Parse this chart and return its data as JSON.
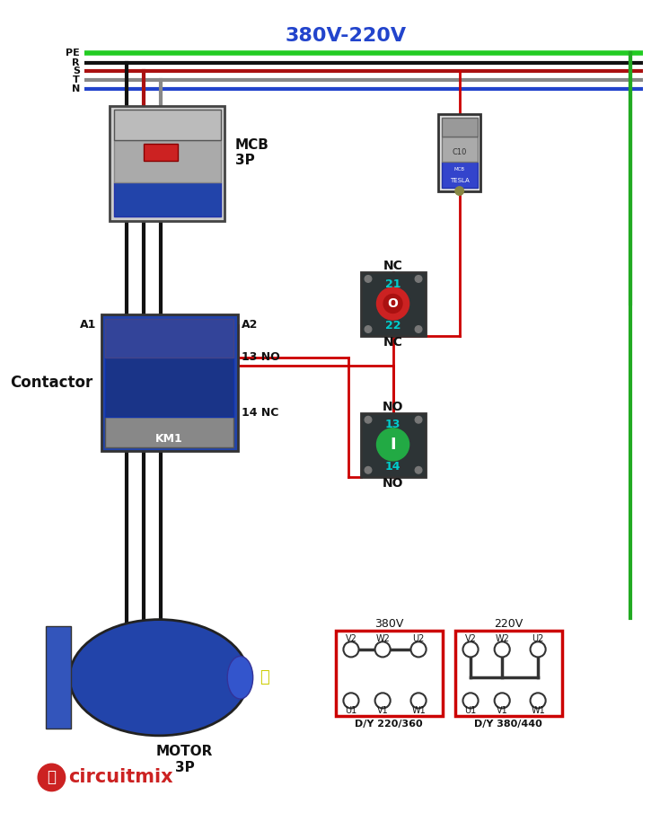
{
  "title": "380V-220V",
  "title_color": "#2244cc",
  "bg_color": "#ffffff",
  "bus_labels": [
    "PE",
    "R",
    "S",
    "T",
    "N"
  ],
  "bus_colors": [
    "#22cc22",
    "#111111",
    "#aa1111",
    "#888888",
    "#2244cc"
  ],
  "wire_red": "#cc0000",
  "wire_green": "#22aa22",
  "wire_black": "#111111",
  "wire_blue": "#2244cc",
  "label_mcb": "MCB\n3P",
  "label_contactor": "Contactor",
  "label_km1": "KM1",
  "label_motor": "MOTOR\n3P",
  "label_nc_stop": "NC",
  "label_no_start": "NO",
  "label_21": "21",
  "label_22": "22",
  "label_13": "13",
  "label_14": "14",
  "label_13no": "13 NO",
  "label_14nc": "14 NC",
  "label_a1": "A1",
  "label_a2": "A2",
  "label_dy1": "D/Y 220/360",
  "label_dy2": "D/Y 380/440",
  "label_380v": "380V",
  "label_220v": "220V",
  "instagram": "circuitmix",
  "dark_box": "#2d3436",
  "red_button": "#cc2222",
  "green_button": "#22aa44",
  "cyan_label": "#00cccc",
  "contactor_color": "#3355aa",
  "mcb_red": "#cc2222",
  "motor_blue": "#2244aa"
}
